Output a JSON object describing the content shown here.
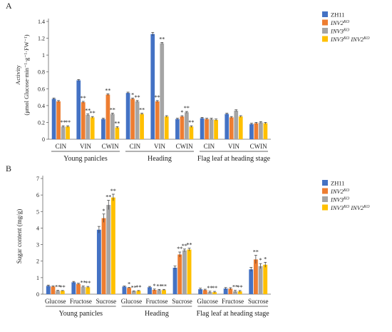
{
  "colors": {
    "ZH11": "#4472C4",
    "INV2": "#ED7D31",
    "INV3": "#A5A5A5",
    "INV3INV2": "#FFC000",
    "error_bar": "#333333"
  },
  "chart_data": [
    {
      "panel_label": "A",
      "type": "bar",
      "ylabel_line1": "Activity",
      "ylabel_line2": "(μmol Glucose·min⁻¹·g⁻¹·FW⁻¹)",
      "ylim": [
        0,
        1.4
      ],
      "yticks": [
        "0",
        "0.2",
        "0.4",
        "0.6",
        "0.8",
        "1",
        "1.2",
        "1.4"
      ],
      "categories": [
        "CIN",
        "VIN",
        "CWIN",
        "CIN",
        "VIN",
        "CWIN",
        "CIN",
        "VIN",
        "CWIN"
      ],
      "groups": [
        "Young panicles",
        "Heading",
        "Flag leaf at heading stage"
      ],
      "legend_position": "top-right",
      "series": [
        {
          "name": "ZH11",
          "color_key": "ZH11",
          "italic": false,
          "values": [
            0.48,
            0.7,
            0.24,
            0.55,
            1.25,
            0.24,
            0.25,
            0.3,
            0.18
          ],
          "errors": [
            0.01,
            0.01,
            0.01,
            0.01,
            0.02,
            0.01,
            0.01,
            0.01,
            0.01
          ],
          "marks": [
            "",
            "",
            "",
            "",
            "",
            "",
            "",
            "",
            ""
          ]
        },
        {
          "name": "INV2KO",
          "color_key": "INV2",
          "italic": true,
          "values": [
            0.45,
            0.44,
            0.53,
            0.48,
            0.45,
            0.27,
            0.24,
            0.26,
            0.19
          ],
          "errors": [
            0.01,
            0.01,
            0.01,
            0.01,
            0.01,
            0.01,
            0.01,
            0.01,
            0.01
          ],
          "marks": [
            "",
            "**",
            "**",
            "*",
            "**",
            "*",
            "",
            "",
            ""
          ]
        },
        {
          "name": "INV3KO",
          "color_key": "INV3",
          "italic": true,
          "values": [
            0.15,
            0.29,
            0.3,
            0.45,
            1.14,
            0.32,
            0.24,
            0.34,
            0.2
          ],
          "errors": [
            0.01,
            0.01,
            0.01,
            0.01,
            0.01,
            0.01,
            0.01,
            0.01,
            0.01
          ],
          "marks": [
            "**",
            "**",
            "**",
            "**",
            "**",
            "**",
            "",
            "",
            ""
          ]
        },
        {
          "name": "INV3KO INV2KO",
          "color_key": "INV3INV2",
          "italic": true,
          "values": [
            0.15,
            0.26,
            0.14,
            0.3,
            0.27,
            0.15,
            0.23,
            0.27,
            0.19
          ],
          "errors": [
            0.01,
            0.01,
            0.01,
            0.01,
            0.01,
            0.01,
            0.01,
            0.01,
            0.01
          ],
          "marks": [
            "**",
            "**",
            "**",
            "**",
            "",
            "**",
            "",
            "",
            ""
          ]
        }
      ]
    },
    {
      "panel_label": "B",
      "type": "bar",
      "ylabel": "Sugar content (mg/g)",
      "ylim": [
        0,
        7
      ],
      "yticks": [
        "0",
        "1",
        "2",
        "3",
        "4",
        "5",
        "6",
        "7"
      ],
      "categories": [
        "Glucose",
        "Fructose",
        "Sucrose",
        "Glucose",
        "Fructose",
        "Sucrose",
        "Glucose",
        "Fructose",
        "Sucrose"
      ],
      "groups": [
        "Young panicles",
        "Heading",
        "Flag leaf at heading stage"
      ],
      "legend_position": "top-right",
      "series": [
        {
          "name": "ZH11",
          "color_key": "ZH11",
          "italic": false,
          "values": [
            0.5,
            0.72,
            3.9,
            0.46,
            0.42,
            1.6,
            0.3,
            0.34,
            1.5
          ],
          "errors": [
            0.05,
            0.05,
            0.2,
            0.03,
            0.05,
            0.1,
            0.06,
            0.06,
            0.12
          ],
          "marks": [
            "",
            "",
            "",
            "",
            "",
            "",
            "",
            "",
            ""
          ]
        },
        {
          "name": "INV2KO",
          "color_key": "INV2",
          "italic": true,
          "values": [
            0.46,
            0.62,
            4.6,
            0.38,
            0.26,
            2.4,
            0.25,
            0.33,
            2.1
          ],
          "errors": [
            0.04,
            0.04,
            0.25,
            0.03,
            0.05,
            0.15,
            0.05,
            0.06,
            0.25
          ],
          "marks": [
            "",
            "",
            "*",
            "*",
            "*",
            "**",
            "",
            "",
            "**"
          ]
        },
        {
          "name": "INV3KO",
          "color_key": "INV3",
          "italic": true,
          "values": [
            0.2,
            0.45,
            5.4,
            0.18,
            0.25,
            2.65,
            0.13,
            0.17,
            1.7
          ],
          "errors": [
            0.03,
            0.04,
            0.28,
            0.02,
            0.04,
            0.08,
            0.05,
            0.06,
            0.15
          ],
          "marks": [
            "**",
            "**",
            "**",
            "**",
            "**",
            "**",
            "**",
            "**",
            "*"
          ]
        },
        {
          "name": "INV3KO INV2KO",
          "color_key": "INV3INV2",
          "italic": true,
          "values": [
            0.2,
            0.42,
            5.85,
            0.2,
            0.25,
            2.7,
            0.12,
            0.17,
            1.78
          ],
          "errors": [
            0.02,
            0.05,
            0.2,
            0.02,
            0.04,
            0.08,
            0.05,
            0.05,
            0.15
          ],
          "marks": [
            "**",
            "**",
            "**",
            "**",
            "**",
            "**",
            "**",
            "**",
            "*"
          ]
        }
      ]
    }
  ]
}
